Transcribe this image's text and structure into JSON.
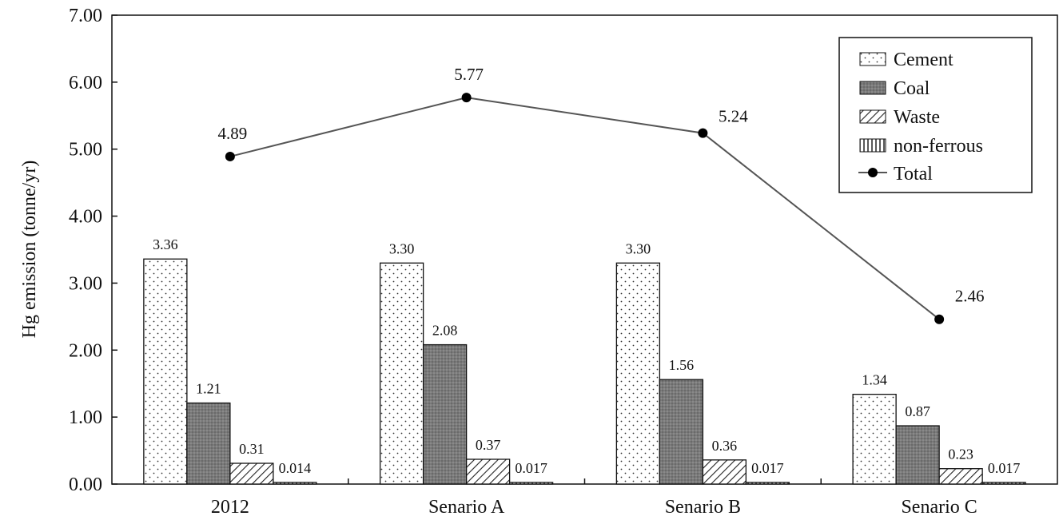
{
  "chart_data": {
    "type": "bar",
    "title": "",
    "xlabel": "",
    "ylabel": "Hg emission (tonne/yr)",
    "ylim": [
      0,
      7
    ],
    "y_tick_step": 1,
    "y_ticks": [
      "0.00",
      "1.00",
      "2.00",
      "3.00",
      "4.00",
      "5.00",
      "6.00",
      "7.00"
    ],
    "grid": false,
    "legend_position": "top-right",
    "categories": [
      "2012",
      "Senario A",
      "Senario B",
      "Senario C"
    ],
    "series": [
      {
        "name": "Cement",
        "pattern": "dots",
        "values": [
          3.36,
          3.3,
          3.3,
          1.34
        ],
        "labels": [
          "3.36",
          "3.30",
          "3.30",
          "1.34"
        ]
      },
      {
        "name": "Coal",
        "pattern": "dark-fill",
        "values": [
          1.21,
          2.08,
          1.56,
          0.87
        ],
        "labels": [
          "1.21",
          "2.08",
          "1.56",
          "0.87"
        ]
      },
      {
        "name": "Waste",
        "pattern": "diagonal-hatch",
        "values": [
          0.31,
          0.37,
          0.36,
          0.23
        ],
        "labels": [
          "0.31",
          "0.37",
          "0.36",
          "0.23"
        ]
      },
      {
        "name": "non-ferrous",
        "pattern": "vertical-hatch",
        "values": [
          0.014,
          0.017,
          0.017,
          0.017
        ],
        "labels": [
          "0.014",
          "0.017",
          "0.017",
          "0.017"
        ]
      }
    ],
    "line_series": {
      "name": "Total",
      "values": [
        4.89,
        5.77,
        5.24,
        2.46
      ],
      "labels": [
        "4.89",
        "5.77",
        "5.24",
        "2.46"
      ]
    }
  },
  "colors": {
    "axis": "#111111",
    "bar_stroke": "#111111",
    "coal_fill": "#7a7a7a",
    "line": "#555555",
    "marker": "#000000"
  }
}
